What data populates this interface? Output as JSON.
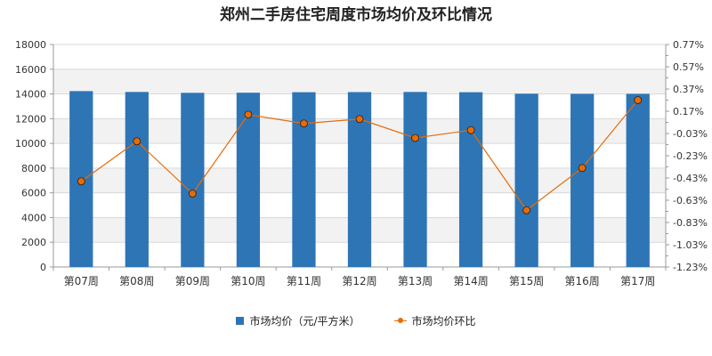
{
  "chart_data": {
    "type": "bar",
    "title": "郑州二手房住宅周度市场均价及环比情况",
    "categories": [
      "第07周",
      "第08周",
      "第09周",
      "第10周",
      "第11周",
      "第12周",
      "第13周",
      "第14周",
      "第15周",
      "第16周",
      "第17周"
    ],
    "series": [
      {
        "name": "市场均价（元/平方米）",
        "type": "bar",
        "axis": "left",
        "color": "#2e75b6",
        "values": [
          14230,
          14160,
          14090,
          14100,
          14140,
          14150,
          14160,
          14140,
          14020,
          14010,
          14010
        ]
      },
      {
        "name": "市场均价环比",
        "type": "line",
        "axis": "right",
        "color": "#e46c0a",
        "values": [
          -0.46,
          -0.1,
          -0.57,
          0.14,
          0.06,
          0.1,
          -0.07,
          0.0,
          -0.72,
          -0.34,
          0.27
        ]
      }
    ],
    "y_left": {
      "min": 0,
      "max": 18000,
      "step": 2000,
      "ticks": [
        "0",
        "2000",
        "4000",
        "6000",
        "8000",
        "10000",
        "12000",
        "14000",
        "16000",
        "18000"
      ]
    },
    "y_right": {
      "min": -1.23,
      "max": 0.77,
      "step": 0.2,
      "ticks": [
        "-1.23%",
        "-1.03%",
        "-0.83%",
        "-0.63%",
        "-0.43%",
        "-0.23%",
        "-0.03%",
        "0.17%",
        "0.37%",
        "0.57%",
        "0.77%"
      ]
    },
    "grid": true,
    "legend_position": "bottom"
  }
}
